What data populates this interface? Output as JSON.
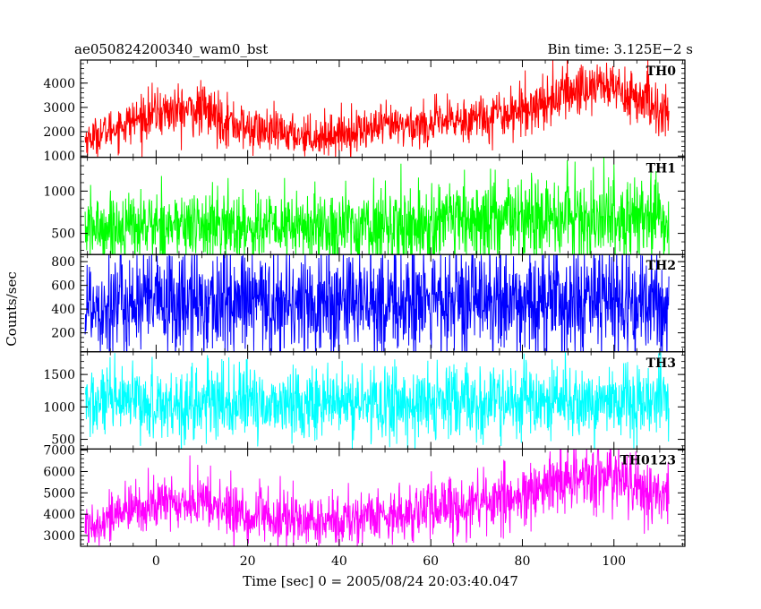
{
  "chart_data": {
    "type": "line",
    "title": "ae050824200340_wam0_bst",
    "subtitle": "Bin time: 3.125E−2 s",
    "xlabel": "Time [sec] 0 = 2005/08/24 20:03:40.047",
    "ylabel": "Counts/sec",
    "xlim": [
      -16.5,
      115.5
    ],
    "x_ticks": [
      0,
      20,
      40,
      60,
      80,
      100
    ],
    "grid": false,
    "series": [
      {
        "name": "TH0",
        "color": "#ff0000",
        "ylim": [
          950,
          4950
        ],
        "y_ticks": [
          1000,
          2000,
          3000,
          4000
        ],
        "x_range": [
          -15.5,
          112
        ],
        "trend": [
          [
            -15,
            1700
          ],
          [
            -10,
            2100
          ],
          [
            0,
            2800
          ],
          [
            10,
            2900
          ],
          [
            20,
            2100
          ],
          [
            30,
            1900
          ],
          [
            35,
            1800
          ],
          [
            50,
            2200
          ],
          [
            60,
            2300
          ],
          [
            70,
            2600
          ],
          [
            80,
            2900
          ],
          [
            90,
            3600
          ],
          [
            97,
            4000
          ],
          [
            105,
            3400
          ],
          [
            112,
            2700
          ]
        ],
        "noise": [
          [
            -15,
            350
          ],
          [
            0,
            500
          ],
          [
            10,
            550
          ],
          [
            30,
            400
          ],
          [
            60,
            450
          ],
          [
            95,
            600
          ],
          [
            112,
            550
          ]
        ]
      },
      {
        "name": "TH1",
        "color": "#00ff00",
        "ylim": [
          250,
          1400
        ],
        "y_ticks": [
          500,
          1000
        ],
        "x_range": [
          -15.5,
          112
        ],
        "trend": [
          [
            -15,
            560
          ],
          [
            0,
            600
          ],
          [
            20,
            580
          ],
          [
            40,
            570
          ],
          [
            60,
            600
          ],
          [
            80,
            650
          ],
          [
            100,
            680
          ],
          [
            112,
            650
          ]
        ],
        "noise": [
          [
            -15,
            200
          ],
          [
            40,
            220
          ],
          [
            80,
            260
          ],
          [
            112,
            250
          ]
        ]
      },
      {
        "name": "TH2",
        "color": "#0000ff",
        "ylim": [
          40,
          860
        ],
        "y_ticks": [
          200,
          400,
          600,
          800
        ],
        "x_range": [
          -15.5,
          112
        ],
        "trend": [
          [
            -15,
            450
          ],
          [
            50,
            450
          ],
          [
            112,
            450
          ]
        ],
        "noise": [
          [
            -15,
            230
          ],
          [
            112,
            230
          ]
        ]
      },
      {
        "name": "TH3",
        "color": "#00ffff",
        "ylim": [
          350,
          1850
        ],
        "y_ticks": [
          500,
          1000,
          1500
        ],
        "x_range": [
          -15.5,
          112
        ],
        "trend": [
          [
            -15,
            1050
          ],
          [
            50,
            1050
          ],
          [
            112,
            1060
          ]
        ],
        "noise": [
          [
            -15,
            280
          ],
          [
            112,
            290
          ]
        ]
      },
      {
        "name": "TH0123",
        "color": "#ff00ff",
        "ylim": [
          2500,
          7050
        ],
        "y_ticks": [
          3000,
          4000,
          5000,
          6000,
          7000
        ],
        "x_range": [
          -15.5,
          112
        ],
        "trend": [
          [
            -15,
            3500
          ],
          [
            -10,
            3900
          ],
          [
            0,
            4500
          ],
          [
            10,
            4600
          ],
          [
            20,
            3900
          ],
          [
            35,
            3600
          ],
          [
            50,
            4000
          ],
          [
            60,
            4200
          ],
          [
            70,
            4500
          ],
          [
            80,
            4800
          ],
          [
            90,
            5500
          ],
          [
            97,
            5900
          ],
          [
            105,
            5300
          ],
          [
            112,
            4700
          ]
        ],
        "noise": [
          [
            -15,
            500
          ],
          [
            10,
            700
          ],
          [
            40,
            600
          ],
          [
            95,
            800
          ],
          [
            112,
            700
          ]
        ]
      }
    ]
  }
}
